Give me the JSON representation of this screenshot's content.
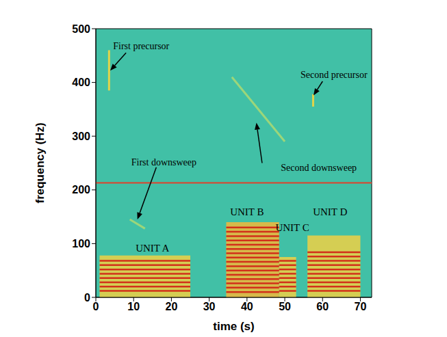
{
  "chart_data": {
    "type": "spectrogram",
    "x_label": "time (s)",
    "y_label": "frequency (Hz)",
    "xlim": [
      0,
      73
    ],
    "xticks": [
      0,
      10,
      20,
      30,
      40,
      50,
      60,
      70
    ],
    "ylim": [
      0,
      500
    ],
    "yticks": [
      0,
      100,
      200,
      300,
      400,
      500
    ],
    "color": "#41c0a6",
    "units": [
      {
        "name": "UNIT A",
        "start": 1,
        "end": 25,
        "fmax": 78,
        "harmonics": [
          12,
          20,
          28,
          36,
          44,
          52,
          60,
          68
        ],
        "label_at": [
          15,
          92
        ],
        "color": "#e6cf4a"
      },
      {
        "name": "UNIT B",
        "start": 34.5,
        "end": 48.5,
        "fmax": 140,
        "harmonics": [
          10,
          18,
          26,
          34,
          42,
          50,
          58,
          66,
          74,
          82,
          90,
          98,
          106,
          114,
          122,
          130
        ],
        "label_at": [
          40,
          160
        ],
        "color": "#e8b840"
      },
      {
        "name": "UNIT C",
        "start": 48.5,
        "end": 53,
        "fmax": 75,
        "harmonics": [
          12,
          20,
          28,
          36,
          44,
          52,
          60,
          68
        ],
        "label_at": [
          52,
          130
        ],
        "color": "#e6cf4a"
      },
      {
        "name": "UNIT D",
        "start": 56,
        "end": 70,
        "fmax": 115,
        "harmonics": [
          12,
          20,
          28,
          36,
          44,
          52,
          60,
          68,
          76,
          84
        ],
        "label_at": [
          62,
          160
        ],
        "color": "#e6cf4a"
      }
    ],
    "harmonic_color": "#d2301a",
    "precursors": [
      {
        "time": 3.5,
        "fmin": 385,
        "fmax": 460
      },
      {
        "time": 57.5,
        "fmin": 355,
        "fmax": 378
      }
    ],
    "precursor_color": "#e2d44a",
    "downsweeps": [
      {
        "start": [
          9,
          145
        ],
        "end": [
          13,
          128
        ]
      },
      {
        "start": [
          36,
          410
        ],
        "end": [
          50,
          290
        ]
      }
    ],
    "downsweep_color": "#9cd67a",
    "reference_line": {
      "y": 213,
      "color": "#e0402a"
    },
    "annotations": [
      {
        "text": "First precursor",
        "text_at": [
          12,
          468
        ],
        "arrow": [
          [
            8,
            455
          ],
          [
            3.8,
            422
          ]
        ]
      },
      {
        "text": "Second precursor",
        "text_at": [
          63,
          415
        ],
        "arrow": [
          [
            60,
            402
          ],
          [
            57.6,
            376
          ]
        ]
      },
      {
        "text": "First downsweep",
        "text_at": [
          18,
          252
        ],
        "arrow": [
          [
            16,
            242
          ],
          [
            11,
            145
          ]
        ]
      },
      {
        "text": "Second downsweep",
        "text_at": [
          59,
          242
        ],
        "arrow": [
          [
            44,
            250
          ],
          [
            42.5,
            325
          ]
        ]
      }
    ]
  }
}
